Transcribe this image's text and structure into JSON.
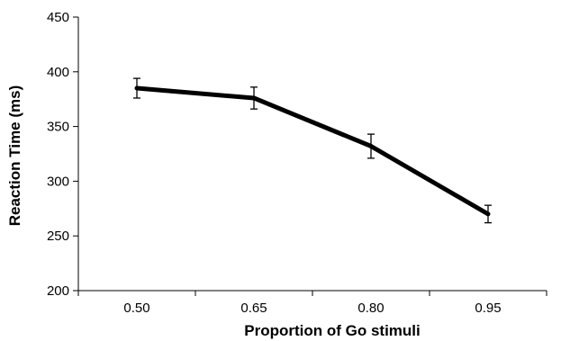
{
  "chart_data": {
    "type": "line",
    "title": "",
    "xlabel": "Proportion of Go stimuli",
    "ylabel": "Reaction Time (ms)",
    "categories": [
      "0.50",
      "0.65",
      "0.80",
      "0.95"
    ],
    "series": [
      {
        "values": [
          385,
          376,
          332,
          270
        ],
        "error": [
          9,
          10,
          11,
          8
        ]
      }
    ],
    "ylim": [
      200,
      450
    ],
    "yticks": [
      200,
      250,
      300,
      350,
      400,
      450
    ],
    "ytick_labels": [
      "200",
      "250",
      "300",
      "350",
      "400",
      "450"
    ],
    "grid": false,
    "legend": "none",
    "line_color": "#000000"
  }
}
